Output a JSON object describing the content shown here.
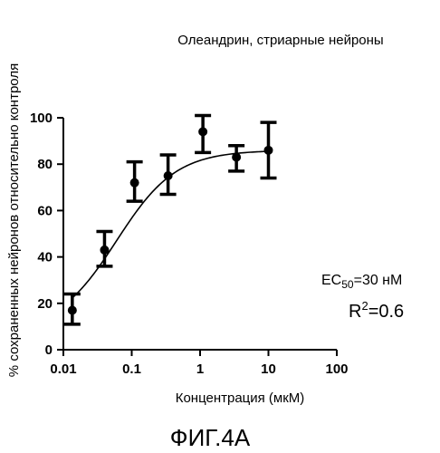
{
  "chart_data": {
    "type": "scatter",
    "title": "Олеандрин, стриарные нейроны",
    "xlabel": "Концентрация (мкМ)",
    "ylabel": "% сохраненных нейронов относительно контроля",
    "x_scale": "log",
    "xlim": [
      0.01,
      100
    ],
    "ylim": [
      0,
      100
    ],
    "x_ticks": [
      "0.01",
      "0.1",
      "1",
      "10",
      "100"
    ],
    "y_ticks": [
      "0",
      "20",
      "40",
      "60",
      "80",
      "100"
    ],
    "grid": false,
    "series": [
      {
        "points": [
          {
            "x": 0.0135,
            "y": 17,
            "err_low": 11,
            "err_high": 24
          },
          {
            "x": 0.04,
            "y": 43,
            "err_low": 36,
            "err_high": 51
          },
          {
            "x": 0.11,
            "y": 72,
            "err_low": 64,
            "err_high": 81
          },
          {
            "x": 0.34,
            "y": 75,
            "err_low": 67,
            "err_high": 84
          },
          {
            "x": 1.1,
            "y": 94,
            "err_low": 85,
            "err_high": 101
          },
          {
            "x": 3.4,
            "y": 83,
            "err_low": 77,
            "err_high": 88
          },
          {
            "x": 10,
            "y": 86,
            "err_low": 74,
            "err_high": 98
          }
        ]
      }
    ],
    "fit_curve": {
      "model": "sigmoid",
      "bottom": 8,
      "top": 86,
      "ec50": 0.06
    },
    "annotations": {
      "ec50_prefix": "EC",
      "ec50_sub": "50",
      "ec50_value": "=30 нМ",
      "r2_prefix": "R",
      "r2_sup": "2",
      "r2_value": "=0.6"
    }
  },
  "figure_caption": "ФИГ.4А"
}
